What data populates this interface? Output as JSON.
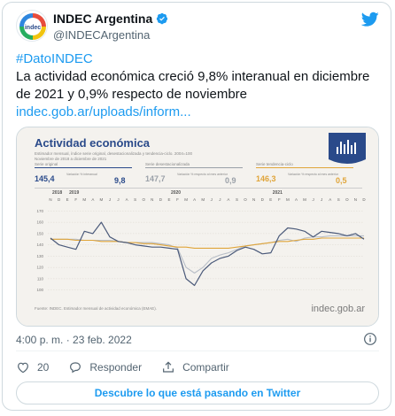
{
  "user": {
    "display_name": "INDEC Argentina",
    "handle": "@INDECArgentina",
    "avatar_text": "indec"
  },
  "tweet": {
    "hashtag": "#DatoINDEC",
    "text": "La actividad económica creció 9,8% interanual en diciembre de 2021 y 0,9% respecto de noviembre",
    "link": "indec.gob.ar/uploads/inform...",
    "timestamp": "4:00 p. m. · 23 feb. 2022"
  },
  "actions": {
    "likes": "20",
    "reply_label": "Responder",
    "share_label": "Compartir"
  },
  "cta_label": "Descubre lo que está pasando en Twitter",
  "icons": [
    "verified-icon",
    "twitter-logo-icon",
    "info-icon",
    "heart-icon",
    "reply-icon",
    "share-icon",
    "bar-chart-icon"
  ],
  "colors": {
    "accent": "#1d9bf0",
    "chart_title": "#2a4a8a",
    "original_series": "#4b5a7a",
    "desest_series": "#b8bec7",
    "trend_series": "#e0a53a",
    "badge": "#2a4a8a"
  },
  "chart_data": {
    "type": "line",
    "title": "Actividad económica",
    "subtitle": "Estimador mensual, índice serie original, desestacionalizada y tendencia-ciclo. 2004=100",
    "subtitle2": "Noviembre de 2018 a diciembre de 2021",
    "kpis": [
      {
        "label": "Serie original",
        "value": "145,4",
        "sub_label": "Variación % interanual",
        "sub_value": "9,8"
      },
      {
        "label": "Serie desestacionalizada",
        "value": "147,7",
        "sub_label": "Variación % respecto al mes anterior",
        "sub_value": "0,9"
      },
      {
        "label": "Serie tendencia-ciclo",
        "value": "146,3",
        "sub_label": "Variación % respecto al mes anterior",
        "sub_value": "0,5"
      }
    ],
    "years": [
      "2018",
      "2019",
      "2020",
      "2021"
    ],
    "month_initials": [
      "N",
      "D",
      "E",
      "F",
      "M",
      "A",
      "M",
      "J",
      "J",
      "A",
      "S",
      "O",
      "N",
      "D",
      "E",
      "F",
      "M",
      "A",
      "M",
      "J",
      "J",
      "A",
      "S",
      "O",
      "N",
      "D",
      "E",
      "F",
      "M",
      "A",
      "M",
      "J",
      "J",
      "A",
      "S",
      "O",
      "N",
      "D"
    ],
    "ytick_labels": [
      "170",
      "160",
      "150",
      "140",
      "130",
      "120",
      "110",
      "100"
    ],
    "ylim": [
      95,
      175
    ],
    "series": [
      {
        "name": "Serie original",
        "values": [
          146,
          140,
          138,
          136,
          152,
          150,
          160,
          147,
          143,
          142,
          140,
          139,
          138,
          138,
          137,
          136,
          110,
          104,
          117,
          124,
          128,
          130,
          135,
          138,
          136,
          132,
          133,
          148,
          155,
          154,
          152,
          147,
          152,
          151,
          150,
          148,
          150,
          145
        ]
      },
      {
        "name": "Serie desestacionalizada",
        "values": [
          145,
          145,
          145,
          145,
          144,
          144,
          144,
          144,
          143,
          142,
          142,
          142,
          142,
          141,
          140,
          137,
          120,
          115,
          120,
          128,
          131,
          133,
          136,
          139,
          140,
          141,
          142,
          144,
          145,
          143,
          146,
          147,
          147,
          148,
          148,
          148,
          148,
          148
        ]
      },
      {
        "name": "Serie tendencia-ciclo",
        "values": [
          145,
          145,
          145,
          144,
          144,
          144,
          143,
          143,
          143,
          142,
          142,
          141,
          141,
          140,
          139,
          138,
          138,
          137,
          137,
          137,
          137,
          137,
          138,
          139,
          140,
          141,
          142,
          143,
          143,
          144,
          145,
          145,
          146,
          146,
          146,
          146,
          146,
          146
        ]
      }
    ],
    "source": "Fuente: INDEC. Estimador mensual de actividad económica (EMAE).",
    "logo_text": "indec.gob.ar"
  }
}
